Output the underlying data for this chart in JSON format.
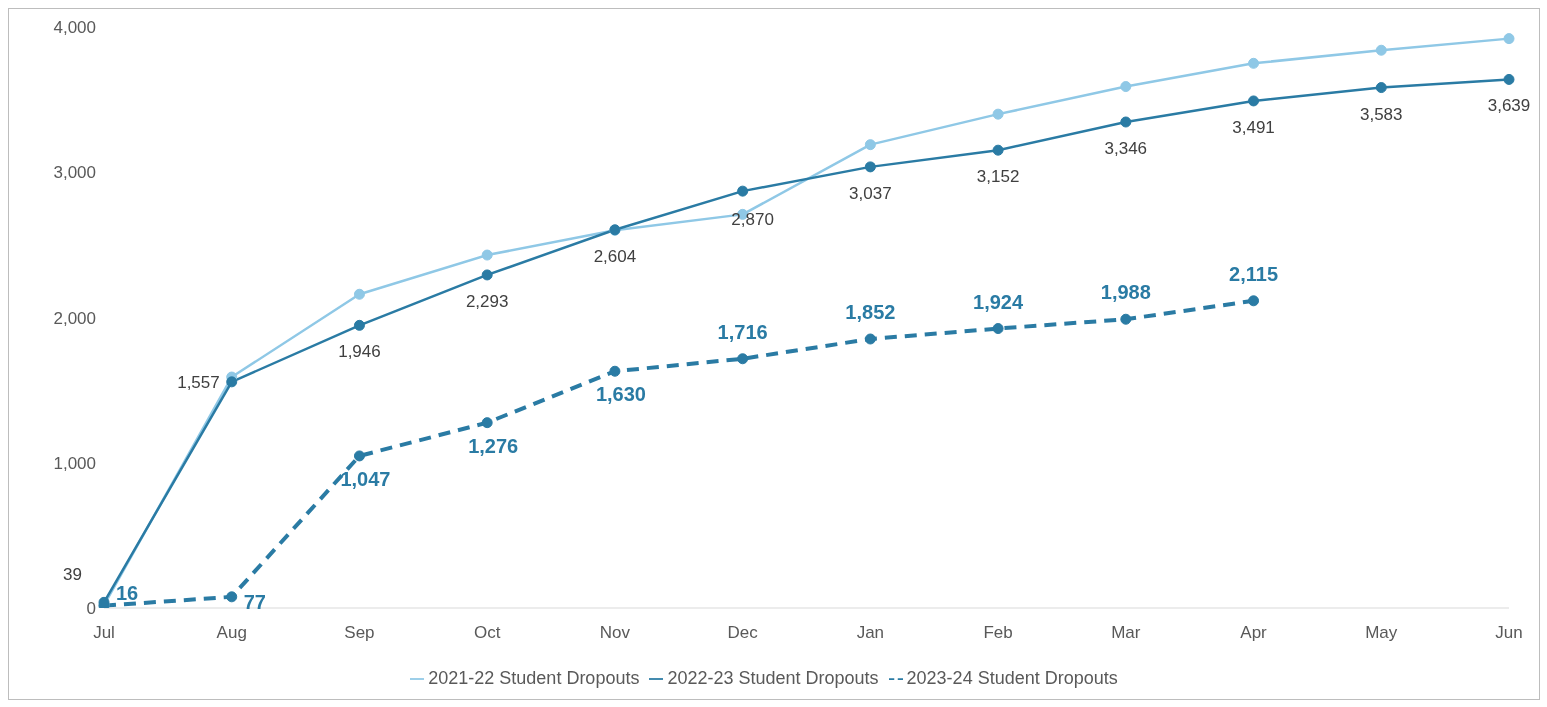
{
  "chart_data": {
    "type": "line",
    "categories": [
      "Jul",
      "Aug",
      "Sep",
      "Oct",
      "Nov",
      "Dec",
      "Jan",
      "Feb",
      "Mar",
      "Apr",
      "May",
      "Jun"
    ],
    "ylim": [
      0,
      4000
    ],
    "yticks": [
      {
        "value": 0,
        "label": "0"
      },
      {
        "value": 1000,
        "label": "1,000"
      },
      {
        "value": 2000,
        "label": "2,000"
      },
      {
        "value": 3000,
        "label": "3,000"
      },
      {
        "value": 4000,
        "label": "4,000"
      }
    ],
    "grid": false,
    "legend": "bottom",
    "marker": "circle",
    "series": [
      {
        "name": "2021-22 Student Dropouts",
        "color": "#8fc8e6",
        "values": [
          20,
          1590,
          2160,
          2430,
          2600,
          2710,
          3190,
          3400,
          3590,
          3750,
          3840,
          3920
        ]
      },
      {
        "name": "2022-23 Student Dropouts",
        "color": "#2a7ba4",
        "values": [
          39,
          1557,
          1946,
          2293,
          2604,
          2870,
          3037,
          3152,
          3346,
          3491,
          3583,
          3639
        ],
        "value_labels": [
          "39",
          "1,557",
          "1,946",
          "2,293",
          "2,604",
          "2,870",
          "3,037",
          "3,152",
          "3,346",
          "3,491",
          "3,583",
          "3,639"
        ]
      },
      {
        "name": "2023-24 Student Dropouts",
        "color": "#2a7ba4",
        "line_style": "dashed",
        "values": [
          16,
          77,
          1047,
          1276,
          1630,
          1716,
          1852,
          1924,
          1988,
          2115,
          null,
          null
        ],
        "value_labels": [
          "16",
          "77",
          "1,047",
          "1,276",
          "1,630",
          "1,716",
          "1,852",
          "1,924",
          "1,988",
          "2,115",
          null,
          null
        ]
      }
    ]
  }
}
